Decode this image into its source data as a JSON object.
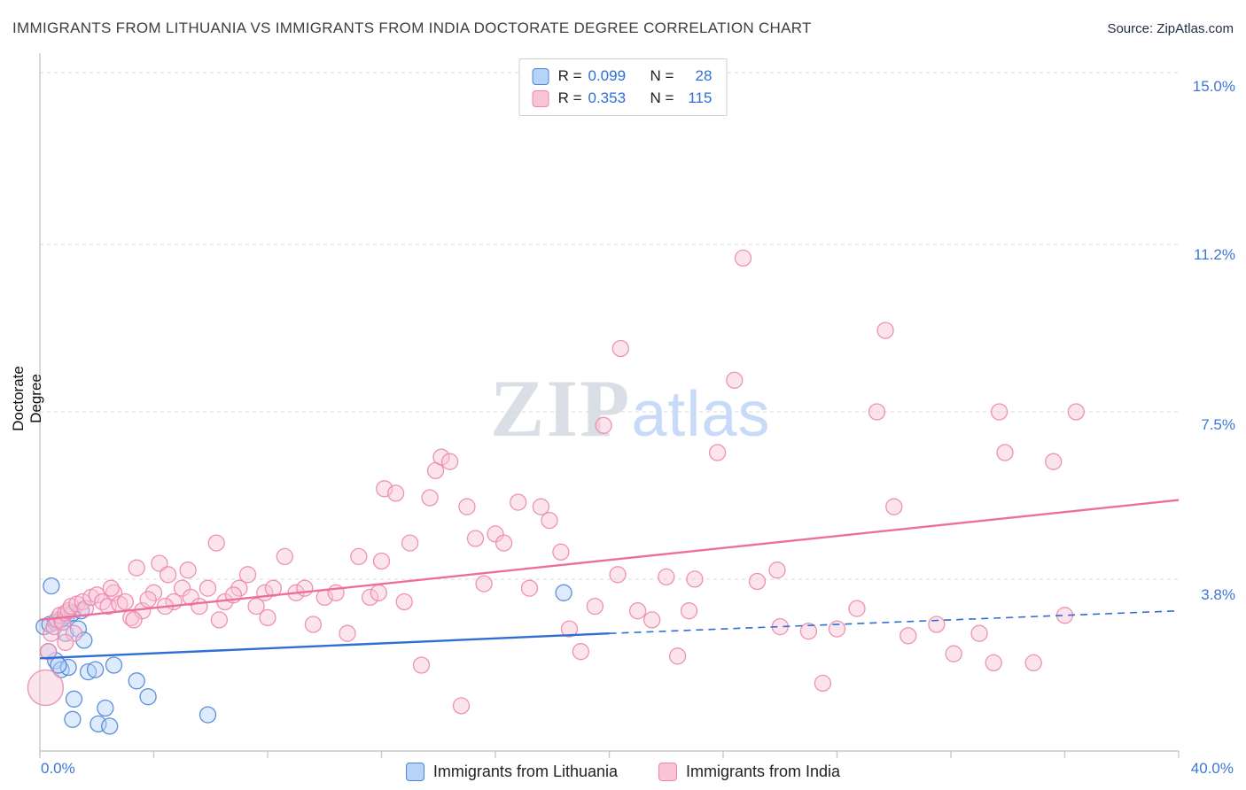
{
  "header": {
    "title": "IMMIGRANTS FROM LITHUANIA VS IMMIGRANTS FROM INDIA DOCTORATE DEGREE CORRELATION CHART",
    "source": "Source: ZipAtlas.com"
  },
  "watermark": {
    "zip": "ZIP",
    "atlas": "atlas"
  },
  "legend_box": {
    "rows": [
      {
        "series": "lithuania",
        "r_label": "R =",
        "r_value": "0.099",
        "n_label": "N =",
        "n_value": "28"
      },
      {
        "series": "india",
        "r_label": "R =",
        "r_value": "0.353",
        "n_label": "N =",
        "n_value": "115"
      }
    ]
  },
  "bottom_legend": {
    "items": [
      {
        "series": "lithuania",
        "label": "Immigrants from Lithuania"
      },
      {
        "series": "india",
        "label": "Immigrants from India"
      }
    ]
  },
  "colors": {
    "lithuania_fill": "#b6d3f8",
    "lithuania_stroke": "#4f83d4",
    "india_fill": "#f9c4d6",
    "india_stroke": "#ec87ab",
    "trend_lithuania": "#2e6fd6",
    "trend_india": "#ed6f99",
    "grid": "#d9d9d9",
    "axis": "#c9c9c9",
    "tick_label": "#3d76d6"
  },
  "chart_data": {
    "type": "scatter",
    "title": "Immigrants from Lithuania vs Immigrants from India Doctorate Degree",
    "xlabel": "",
    "ylabel": "Doctorate Degree",
    "xlim": [
      0,
      40
    ],
    "ylim": [
      0,
      15.8
    ],
    "x_min_label": "0.0%",
    "x_max_label": "40.0%",
    "grid": "horizontal-dashed",
    "legend_position": "bottom-center",
    "y_ticks": [
      {
        "value": 15.0,
        "label": "15.0%"
      },
      {
        "value": 11.2,
        "label": "11.2%"
      },
      {
        "value": 7.5,
        "label": "7.5%"
      },
      {
        "value": 3.8,
        "label": "3.8%"
      }
    ],
    "x_tick_step": 4,
    "series": [
      {
        "name": "Immigrants from Lithuania",
        "key": "lithuania",
        "R": 0.099,
        "N": 28,
        "points": [
          [
            0.4,
            3.65
          ],
          [
            0.15,
            2.75
          ],
          [
            0.35,
            2.8
          ],
          [
            0.55,
            2.85
          ],
          [
            0.75,
            2.9
          ],
          [
            0.95,
            3.0
          ],
          [
            1.15,
            3.05
          ],
          [
            0.9,
            2.6
          ],
          [
            1.35,
            2.7
          ],
          [
            1.55,
            2.45
          ],
          [
            0.55,
            2.0
          ],
          [
            0.75,
            1.8
          ],
          [
            1.0,
            1.85
          ],
          [
            0.65,
            1.9
          ],
          [
            1.7,
            1.75
          ],
          [
            1.95,
            1.8
          ],
          [
            1.2,
            1.15
          ],
          [
            2.3,
            0.95
          ],
          [
            2.05,
            0.6
          ],
          [
            2.45,
            0.55
          ],
          [
            1.15,
            0.7
          ],
          [
            3.4,
            1.55
          ],
          [
            3.8,
            1.2
          ],
          [
            5.9,
            0.8
          ],
          [
            18.4,
            3.5
          ],
          [
            0.3,
            2.2
          ],
          [
            1.45,
            3.1
          ],
          [
            2.6,
            1.9
          ]
        ]
      },
      {
        "name": "Immigrants from India",
        "key": "india",
        "R": 0.353,
        "N": 115,
        "points": [
          [
            0.2,
            1.4,
            20
          ],
          [
            0.3,
            2.2
          ],
          [
            0.4,
            2.6
          ],
          [
            0.5,
            2.75
          ],
          [
            0.6,
            2.9
          ],
          [
            0.7,
            3.0
          ],
          [
            0.8,
            2.85
          ],
          [
            0.9,
            3.05
          ],
          [
            1.0,
            3.1
          ],
          [
            1.1,
            3.2
          ],
          [
            1.3,
            3.25
          ],
          [
            1.5,
            3.3
          ],
          [
            1.6,
            3.15
          ],
          [
            1.8,
            3.4
          ],
          [
            2.0,
            3.45
          ],
          [
            2.2,
            3.3
          ],
          [
            2.4,
            3.2
          ],
          [
            2.6,
            3.5
          ],
          [
            2.8,
            3.25
          ],
          [
            3.0,
            3.3
          ],
          [
            3.2,
            2.95
          ],
          [
            3.4,
            4.05
          ],
          [
            3.6,
            3.1
          ],
          [
            3.3,
            2.9
          ],
          [
            2.5,
            3.6
          ],
          [
            1.2,
            2.6
          ],
          [
            0.9,
            2.4
          ],
          [
            4.0,
            3.5
          ],
          [
            4.2,
            4.15
          ],
          [
            4.5,
            3.9
          ],
          [
            4.7,
            3.3
          ],
          [
            5.0,
            3.6
          ],
          [
            5.3,
            3.4
          ],
          [
            5.6,
            3.2
          ],
          [
            5.9,
            3.6
          ],
          [
            6.2,
            4.6
          ],
          [
            6.5,
            3.3
          ],
          [
            6.3,
            2.9
          ],
          [
            7.0,
            3.6
          ],
          [
            7.3,
            3.9
          ],
          [
            7.6,
            3.2
          ],
          [
            7.9,
            3.5
          ],
          [
            8.2,
            3.6
          ],
          [
            8.6,
            4.3
          ],
          [
            9.0,
            3.5
          ],
          [
            9.3,
            3.6
          ],
          [
            9.6,
            2.8
          ],
          [
            10.0,
            3.4
          ],
          [
            10.4,
            3.5
          ],
          [
            10.8,
            2.6
          ],
          [
            11.2,
            4.3
          ],
          [
            11.6,
            3.4
          ],
          [
            12.0,
            4.2
          ],
          [
            12.1,
            5.8
          ],
          [
            12.5,
            5.7
          ],
          [
            13.0,
            4.6
          ],
          [
            13.4,
            1.9
          ],
          [
            13.7,
            5.6
          ],
          [
            13.9,
            6.2
          ],
          [
            14.1,
            6.5
          ],
          [
            14.4,
            6.4
          ],
          [
            14.8,
            1.0
          ],
          [
            15.0,
            5.4
          ],
          [
            15.3,
            4.7
          ],
          [
            15.6,
            3.7
          ],
          [
            16.0,
            4.8
          ],
          [
            16.3,
            4.6
          ],
          [
            16.8,
            5.5
          ],
          [
            17.2,
            3.6
          ],
          [
            17.6,
            5.4
          ],
          [
            17.9,
            5.1
          ],
          [
            18.3,
            4.4
          ],
          [
            18.6,
            2.7
          ],
          [
            19.0,
            2.2
          ],
          [
            19.5,
            3.2
          ],
          [
            19.8,
            7.2
          ],
          [
            20.4,
            8.9
          ],
          [
            20.3,
            3.9
          ],
          [
            21.0,
            3.1
          ],
          [
            21.5,
            2.9
          ],
          [
            22.0,
            3.85
          ],
          [
            22.4,
            2.1
          ],
          [
            23.0,
            3.8
          ],
          [
            23.8,
            6.6
          ],
          [
            24.4,
            8.2
          ],
          [
            24.7,
            10.9
          ],
          [
            25.2,
            3.75
          ],
          [
            26.0,
            2.75
          ],
          [
            27.0,
            2.65
          ],
          [
            27.5,
            1.5
          ],
          [
            28.0,
            2.7
          ],
          [
            28.7,
            3.15
          ],
          [
            29.4,
            7.5
          ],
          [
            29.7,
            9.3
          ],
          [
            30.0,
            5.4
          ],
          [
            30.5,
            2.55
          ],
          [
            31.5,
            2.8
          ],
          [
            32.1,
            2.15
          ],
          [
            33.0,
            2.6
          ],
          [
            33.5,
            1.95
          ],
          [
            33.7,
            7.5
          ],
          [
            33.9,
            6.6
          ],
          [
            34.9,
            1.95
          ],
          [
            35.6,
            6.4
          ],
          [
            36.0,
            3.0
          ],
          [
            36.4,
            7.5
          ],
          [
            25.9,
            4.0
          ],
          [
            22.8,
            3.1
          ],
          [
            12.8,
            3.3
          ],
          [
            11.9,
            3.5
          ],
          [
            8.0,
            2.95
          ],
          [
            6.8,
            3.45
          ],
          [
            5.2,
            4.0
          ],
          [
            4.4,
            3.2
          ],
          [
            3.8,
            3.35
          ]
        ]
      }
    ],
    "trend_lines": [
      {
        "series": "india",
        "style": "solid",
        "x1": 0,
        "y1": 2.9,
        "x2": 40,
        "y2": 5.55
      },
      {
        "series": "lithuania",
        "style": "solid",
        "x1": 0,
        "y1": 2.05,
        "x2": 20,
        "y2": 2.6
      },
      {
        "series": "lithuania",
        "style": "dashed",
        "x1": 20,
        "y1": 2.6,
        "x2": 40,
        "y2": 3.1
      }
    ]
  }
}
